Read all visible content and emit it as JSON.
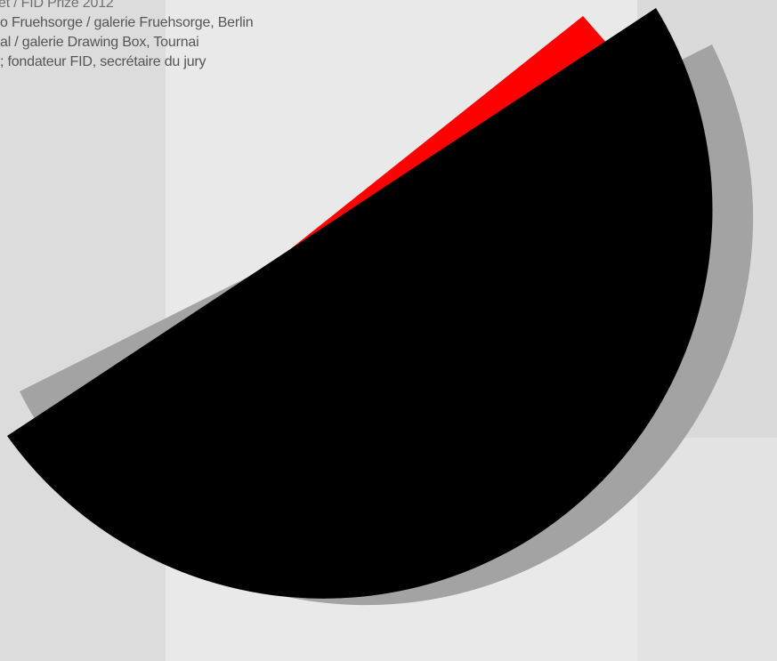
{
  "poster": {
    "lines": [
      "et / FID Prize 2012",
      "o Fruehsorge / galerie Fruehsorge, Berlin",
      "al / galerie Drawing Box, Tournai",
      "; fondateur FID, secrétaire du jury"
    ]
  },
  "colors": {
    "background": "#e2e2e2",
    "text": "#555555",
    "black_shape": "#000000",
    "red_shape": "#ff0000",
    "shadow_shape": "#a3a3a3"
  }
}
